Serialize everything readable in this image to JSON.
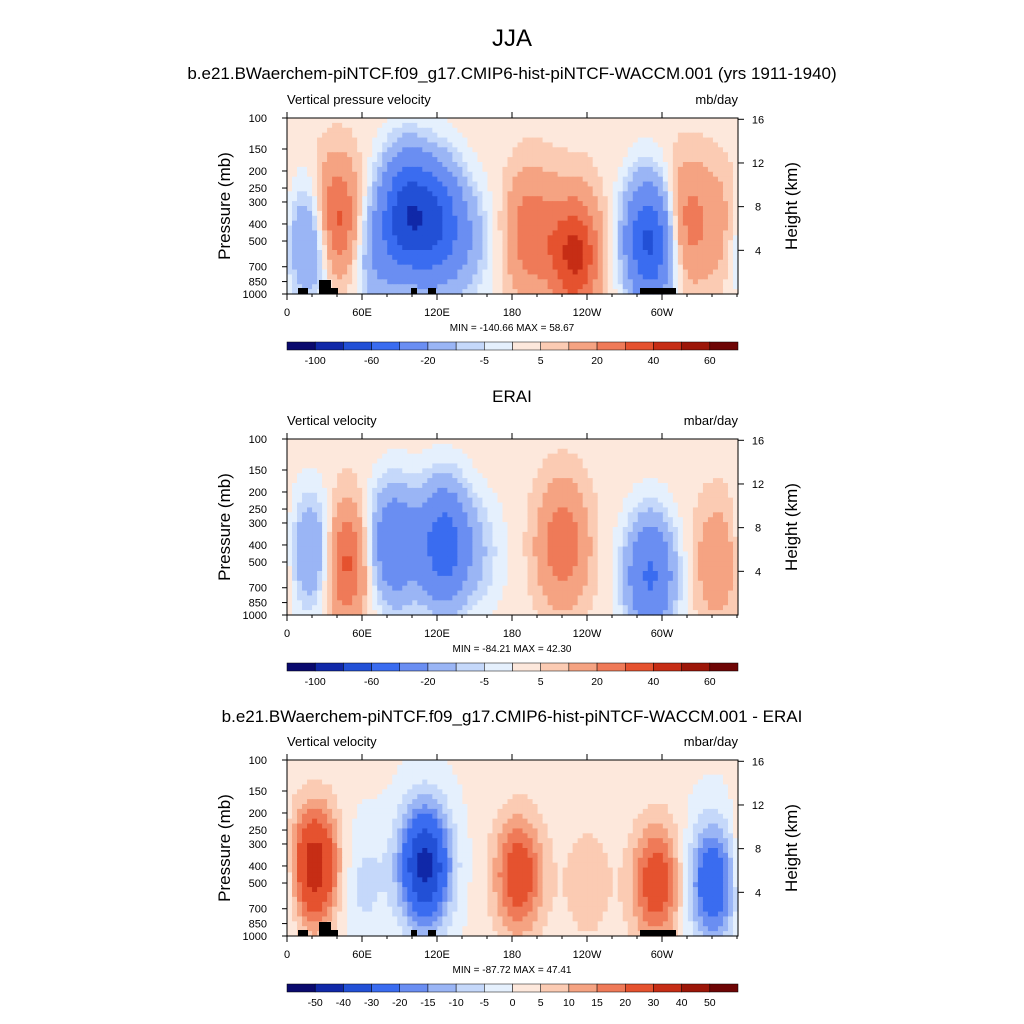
{
  "figure": {
    "season_title": "JJA"
  },
  "palette": {
    "levels_main": [
      "-100",
      "",
      "-60",
      "",
      "-20",
      "",
      "-5",
      "",
      "5",
      "",
      "20",
      "",
      "40",
      "",
      "60"
    ],
    "levels_diff": [
      "-50",
      "-40",
      "-30",
      "-20",
      "-15",
      "-10",
      "-5",
      "0",
      "5",
      "10",
      "15",
      "20",
      "30",
      "40",
      "50"
    ],
    "colors": [
      "#0a0a6e",
      "#1028a8",
      "#2250d6",
      "#3a6cf0",
      "#6a8ef2",
      "#9ab5f5",
      "#c5d8fa",
      "#e5f0fd",
      "#fde8dc",
      "#fbcbb3",
      "#f5a382",
      "#ef7a58",
      "#e5522f",
      "#c62d15",
      "#9c1608",
      "#6e0505"
    ]
  },
  "chart_data": [
    {
      "type": "heatmap",
      "title": "b.e21.BWaerchem-piNTCF.f09_g17.CMIP6-hist-piNTCF-WACCM.001 (yrs 1911-1940)",
      "left_label": "Vertical pressure velocity",
      "right_label": "mb/day",
      "ylabel": "Pressure (mb)",
      "y2label": "Height (km)",
      "x_ticks": [
        "0",
        "60E",
        "120E",
        "180",
        "120W",
        "60W"
      ],
      "y_ticks": [
        "100",
        "150",
        "200",
        "250",
        "300",
        "400",
        "500",
        "700",
        "850",
        "1000"
      ],
      "y2_ticks": [
        "16",
        "12",
        "8",
        "4"
      ],
      "stats": "MIN = -140.66  MAX =  58.67",
      "colorbar": "main",
      "x_range_deg": [
        0,
        360
      ],
      "y_range_mb": [
        1000,
        100
      ],
      "topography": true,
      "field": [
        {
          "lon": 20,
          "p": 500,
          "v": -35
        },
        {
          "lon": 38,
          "p": 400,
          "v": 40
        },
        {
          "lon": 70,
          "p": 600,
          "v": -20
        },
        {
          "lon": 95,
          "p": 350,
          "v": -70
        },
        {
          "lon": 120,
          "p": 400,
          "v": -55
        },
        {
          "lon": 145,
          "p": 500,
          "v": -15
        },
        {
          "lon": 195,
          "p": 450,
          "v": 25
        },
        {
          "lon": 230,
          "p": 600,
          "v": 40
        },
        {
          "lon": 290,
          "p": 500,
          "v": -70
        },
        {
          "lon": 315,
          "p": 400,
          "v": 25
        },
        {
          "lon": 345,
          "p": 400,
          "v": 10
        }
      ]
    },
    {
      "type": "heatmap",
      "title": "ERAI",
      "left_label": "Vertical velocity",
      "right_label": "mbar/day",
      "ylabel": "Pressure (mb)",
      "y2label": "Height (km)",
      "x_ticks": [
        "0",
        "60E",
        "120E",
        "180",
        "120W",
        "60W"
      ],
      "y_ticks": [
        "100",
        "150",
        "200",
        "250",
        "300",
        "400",
        "500",
        "700",
        "850",
        "1000"
      ],
      "y2_ticks": [
        "16",
        "12",
        "8",
        "4"
      ],
      "stats": "MIN = -84.21  MAX = 42.30",
      "colorbar": "main",
      "x_range_deg": [
        0,
        360
      ],
      "y_range_mb": [
        1000,
        100
      ],
      "topography": false,
      "field": [
        {
          "lon": 22,
          "p": 450,
          "v": -30
        },
        {
          "lon": 45,
          "p": 500,
          "v": 35
        },
        {
          "lon": 85,
          "p": 400,
          "v": -40
        },
        {
          "lon": 125,
          "p": 400,
          "v": -55
        },
        {
          "lon": 155,
          "p": 450,
          "v": -10
        },
        {
          "lon": 220,
          "p": 400,
          "v": 25
        },
        {
          "lon": 290,
          "p": 600,
          "v": -45
        },
        {
          "lon": 345,
          "p": 500,
          "v": 15
        }
      ]
    },
    {
      "type": "heatmap",
      "title": "b.e21.BWaerchem-piNTCF.f09_g17.CMIP6-hist-piNTCF-WACCM.001 - ERAI",
      "left_label": "Vertical velocity",
      "right_label": "mbar/day",
      "ylabel": "Pressure (mb)",
      "y2label": "Height (km)",
      "x_ticks": [
        "0",
        "60E",
        "120E",
        "180",
        "120W",
        "60W"
      ],
      "y_ticks": [
        "100",
        "150",
        "200",
        "250",
        "300",
        "400",
        "500",
        "700",
        "850",
        "1000"
      ],
      "y2_ticks": [
        "16",
        "12",
        "8",
        "4"
      ],
      "stats": "MIN = -87.72  MAX = 47.41",
      "colorbar": "diff",
      "x_range_deg": [
        0,
        360
      ],
      "y_range_mb": [
        1000,
        100
      ],
      "topography": true,
      "field": [
        {
          "lon": 22,
          "p": 400,
          "v": 35
        },
        {
          "lon": 60,
          "p": 500,
          "v": -8
        },
        {
          "lon": 110,
          "p": 400,
          "v": -45
        },
        {
          "lon": 185,
          "p": 450,
          "v": 25
        },
        {
          "lon": 240,
          "p": 500,
          "v": 8
        },
        {
          "lon": 295,
          "p": 500,
          "v": 25
        },
        {
          "lon": 340,
          "p": 500,
          "v": -30
        }
      ]
    }
  ]
}
